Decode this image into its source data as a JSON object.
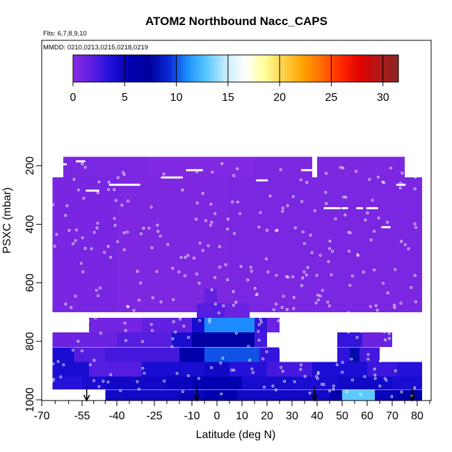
{
  "chart_data": {
    "type": "heatmap",
    "title": "ATOM2 Northbound Nacc_CAPS",
    "subtitle_flights": "Flts: 6,7,8,9,10",
    "subtitle_dates": "MMDD: 0210,0213,0215,0218,0219",
    "xlabel": "Latitude (deg N)",
    "ylabel": "PSXC (mbar)",
    "xlim": [
      -70,
      85
    ],
    "ylim": [
      1010,
      0
    ],
    "x_ticks": [
      -70,
      -55,
      -40,
      -25,
      -10,
      0,
      10,
      20,
      30,
      40,
      50,
      60,
      70,
      80
    ],
    "x_tick_labels": [
      "-70",
      "-55",
      "-40",
      "-25",
      "-10",
      "0",
      "10",
      "20",
      "30",
      "40",
      "50",
      "60",
      "70",
      "80"
    ],
    "x_minor_ticks": [
      -65,
      -60,
      -50,
      -45,
      -35,
      -30,
      -20,
      -15,
      -5,
      5,
      15,
      25,
      35,
      45,
      55,
      65,
      75,
      85
    ],
    "y_ticks": [
      200,
      400,
      600,
      800,
      1000
    ],
    "y_tick_labels": [
      "200",
      "400",
      "600",
      "800",
      "1000"
    ],
    "colorbar": {
      "min": 0,
      "max": 31.5,
      "ticks": [
        0,
        5,
        10,
        15,
        20,
        25,
        30
      ],
      "tick_labels": [
        "0",
        "5",
        "10",
        "15",
        "20",
        "25",
        "30"
      ],
      "colors": [
        "#8a2be2",
        "#5a1ee0",
        "#1f0fd8",
        "#0000b0",
        "#00009a",
        "#0a2ad8",
        "#1e90ff",
        "#5cc8ff",
        "#c8ecff",
        "#ffffff",
        "#ffff99",
        "#ffd24a",
        "#ffa200",
        "#ff6a00",
        "#ff2a00",
        "#e00000",
        "#b01818",
        "#8b2323"
      ]
    },
    "background_color": "#7f2af0",
    "layers": [
      {
        "p_top": 170,
        "p_bot": 240,
        "segments": [
          [
            -62,
            -28,
            0.6
          ],
          [
            -28,
            15,
            0.4
          ],
          [
            15,
            38,
            0.5
          ],
          [
            40,
            75,
            0.5
          ]
        ]
      },
      {
        "p_top": 240,
        "p_bot": 700,
        "segments": [
          [
            -66,
            -40,
            0.7
          ],
          [
            -40,
            5,
            0.5
          ],
          [
            5,
            40,
            0.6
          ],
          [
            40,
            82,
            0.6
          ]
        ]
      },
      {
        "p_top": 620,
        "p_bot": 670,
        "segments": [
          [
            -5,
            0,
            1.5
          ]
        ]
      },
      {
        "p_top": 670,
        "p_bot": 720,
        "segments": [
          [
            -8,
            3,
            2.0
          ],
          [
            3,
            13,
            1.2
          ]
        ]
      },
      {
        "p_top": 720,
        "p_bot": 770,
        "segments": [
          [
            -52,
            -30,
            0.9
          ],
          [
            -30,
            -10,
            1.6
          ],
          [
            -10,
            -5,
            4.0
          ],
          [
            -5,
            15,
            11.0
          ],
          [
            15,
            20,
            3.0
          ],
          [
            20,
            25,
            1.2
          ]
        ]
      },
      {
        "p_top": 770,
        "p_bot": 820,
        "segments": [
          [
            -66,
            -40,
            1.2
          ],
          [
            -40,
            -18,
            2.0
          ],
          [
            -18,
            -10,
            4.0
          ],
          [
            -10,
            15,
            6.5
          ],
          [
            15,
            20,
            2.5
          ],
          [
            48,
            58,
            3.0
          ],
          [
            58,
            70,
            1.2
          ]
        ]
      },
      {
        "p_top": 820,
        "p_bot": 870,
        "segments": [
          [
            -66,
            -58,
            4.0
          ],
          [
            -58,
            -45,
            2.0
          ],
          [
            -45,
            -15,
            2.5
          ],
          [
            -15,
            -5,
            6.0
          ],
          [
            -5,
            17,
            10.0
          ],
          [
            17,
            25,
            3.0
          ],
          [
            48,
            53,
            3.2
          ],
          [
            53,
            57,
            8.0
          ],
          [
            57,
            65,
            2.5
          ]
        ]
      },
      {
        "p_top": 870,
        "p_bot": 920,
        "segments": [
          [
            -66,
            -52,
            4.0
          ],
          [
            -52,
            -30,
            2.0
          ],
          [
            -30,
            -5,
            4.0
          ],
          [
            -5,
            5,
            4.5
          ],
          [
            5,
            20,
            3.5
          ],
          [
            20,
            38,
            2.5
          ],
          [
            38,
            60,
            3.8
          ],
          [
            60,
            72,
            2.8
          ],
          [
            72,
            82,
            3.5
          ]
        ]
      },
      {
        "p_top": 920,
        "p_bot": 965,
        "segments": [
          [
            -66,
            -55,
            3.5
          ],
          [
            -55,
            -45,
            4.0
          ],
          [
            -45,
            -20,
            4.5
          ],
          [
            -20,
            -10,
            5.0
          ],
          [
            -10,
            10,
            5.5
          ],
          [
            10,
            30,
            4.2
          ],
          [
            30,
            48,
            4.0
          ],
          [
            48,
            70,
            4.5
          ],
          [
            70,
            82,
            4.0
          ]
        ]
      },
      {
        "p_top": 965,
        "p_bot": 1010,
        "segments": [
          [
            -45,
            -15,
            4.5
          ],
          [
            -15,
            -5,
            5.0
          ],
          [
            -5,
            8,
            5.5
          ],
          [
            8,
            20,
            4.5
          ],
          [
            20,
            45,
            4.5
          ],
          [
            45,
            50,
            5.5
          ],
          [
            50,
            63,
            13.0
          ],
          [
            63,
            72,
            5.0
          ],
          [
            72,
            82,
            6.0
          ]
        ]
      }
    ],
    "flight_tracks_white": [
      {
        "x": [
          -65,
          -61
        ],
        "p": 195
      },
      {
        "x": [
          -57,
          -54
        ],
        "p": 185
      },
      {
        "x": [
          -53,
          -48
        ],
        "p": 285
      },
      {
        "x": [
          -43,
          -31
        ],
        "p": 265
      },
      {
        "x": [
          -22,
          -14
        ],
        "p": 240
      },
      {
        "x": [
          -12,
          -6
        ],
        "p": 215
      },
      {
        "x": [
          16,
          20
        ],
        "p": 250
      },
      {
        "x": [
          34,
          38
        ],
        "p": 215
      },
      {
        "x": [
          43,
          49
        ],
        "p": 345
      },
      {
        "x": [
          50,
          52
        ],
        "p": 345
      },
      {
        "x": [
          56,
          58
        ],
        "p": 345
      },
      {
        "x": [
          60,
          64
        ],
        "p": 345
      },
      {
        "x": [
          66,
          69
        ],
        "p": 410
      },
      {
        "x": [
          72,
          75
        ],
        "p": 265
      }
    ],
    "profile_arrows_lat": [
      -53,
      -8,
      39,
      78
    ]
  }
}
